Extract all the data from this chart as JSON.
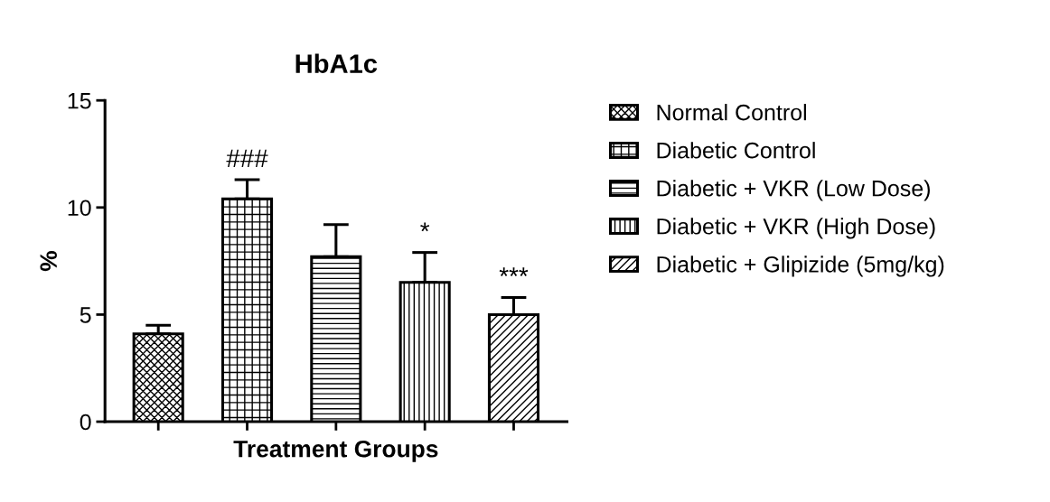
{
  "chart_data": {
    "type": "bar",
    "title": "HbA1c",
    "xlabel": "Treatment Groups",
    "ylabel": "%",
    "categories": [
      null,
      null,
      null,
      null,
      null
    ],
    "series": [
      {
        "name": "Normal Control",
        "color": "#000000",
        "values": [
          4.1,
          null,
          null,
          null,
          null
        ],
        "errors": [
          [
            4.1,
            4.5
          ],
          null,
          null,
          null,
          null
        ]
      },
      {
        "name": "Diabetic Control",
        "color": "#000000",
        "values": [
          null,
          10.4,
          null,
          null,
          null
        ],
        "errors": [
          null,
          [
            10.4,
            11.3
          ],
          null,
          null,
          null
        ]
      },
      {
        "name": "Diabetic + VKR (Low Dose)",
        "color": "#000000",
        "values": [
          null,
          null,
          7.7,
          null,
          null
        ],
        "errors": [
          null,
          null,
          [
            7.7,
            9.2
          ],
          null,
          null
        ]
      },
      {
        "name": "Diabetic + VKR (High Dose)",
        "color": "#000000",
        "values": [
          null,
          null,
          null,
          6.5,
          null
        ],
        "errors": [
          null,
          null,
          null,
          [
            6.5,
            7.9
          ],
          null
        ]
      },
      {
        "name": "Diabetic + Glipizide (5mg/kg)",
        "color": "#000000",
        "values": [
          null,
          null,
          null,
          null,
          5.0
        ],
        "errors": [
          null,
          null,
          null,
          null,
          [
            5.0,
            5.8
          ]
        ]
      }
    ],
    "ylim": [
      0,
      15
    ],
    "yticks": [
      0,
      5,
      10,
      15
    ],
    "tick_labels": "y",
    "grid": false,
    "legend": "right",
    "annotations": [
      {
        "text": "###",
        "y": 11.3
      },
      {
        "text": "*",
        "y": 7.9
      },
      {
        "text": "***",
        "y": 5.8
      }
    ]
  }
}
